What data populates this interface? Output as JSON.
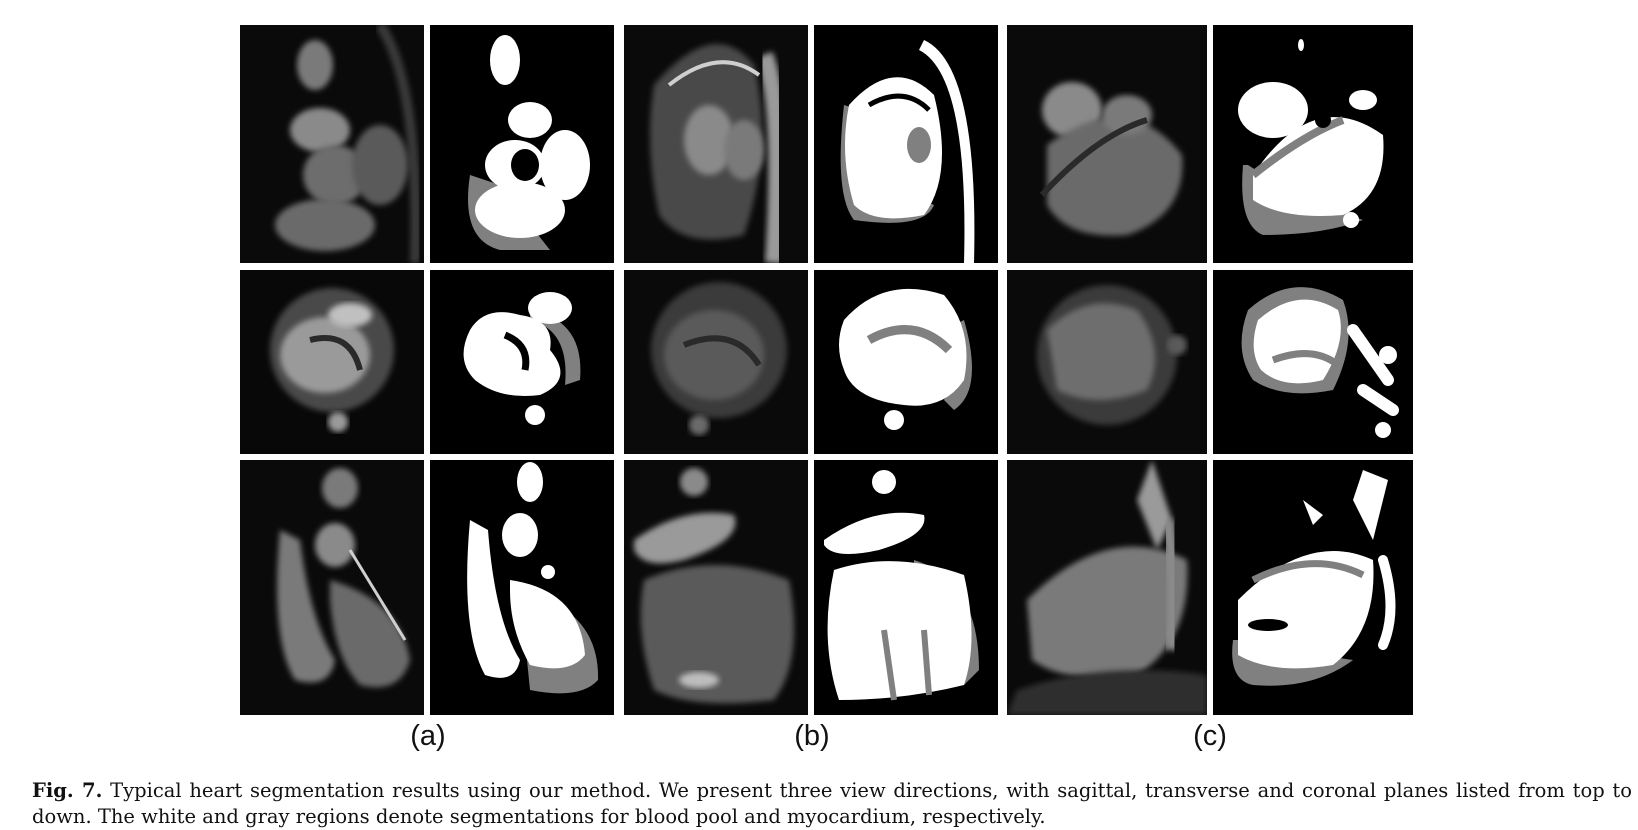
{
  "figure": {
    "panels": [
      {
        "label": "(a)"
      },
      {
        "label": "(b)"
      },
      {
        "label": "(c)"
      }
    ],
    "rows": [
      "sagittal",
      "transverse",
      "coronal"
    ],
    "colors": {
      "background": "#000000",
      "blood_pool": "#ffffff",
      "myocardium": "#808080",
      "mri_tissue": "#6e6e6e"
    }
  },
  "caption": {
    "label": "Fig. 7.",
    "text": "Typical heart segmentation results using our method. We present three view directions, with sagittal, transverse and coronal planes listed from top to down. The white and gray regions denote segmentations for blood pool and myocardium, respectively."
  }
}
